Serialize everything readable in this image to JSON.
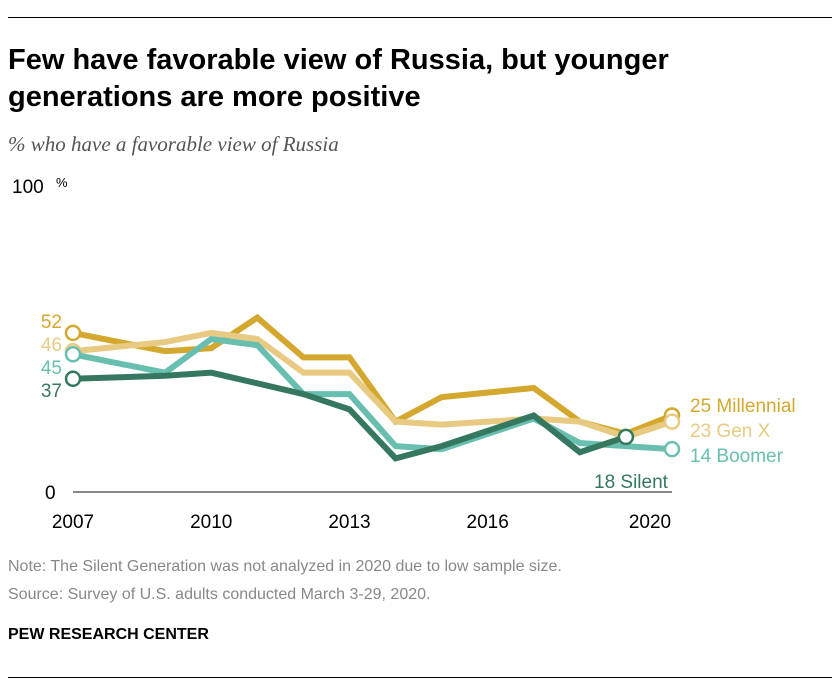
{
  "title": "Few have favorable view of Russia, but younger generations are more positive",
  "subtitle": "% who have a favorable view of Russia",
  "note": "Note: The Silent Generation was not analyzed in 2020 due to low sample size.",
  "source": "Source: Survey of U.S. adults conducted March 3-29, 2020.",
  "brand": "PEW RESEARCH CENTER",
  "chart_data": {
    "type": "line",
    "x": [
      2007,
      2008,
      2009,
      2010,
      2011,
      2012,
      2013,
      2014,
      2015,
      2016,
      2017,
      2018,
      2019,
      2020
    ],
    "xticks": [
      "2007",
      "2010",
      "2013",
      "2016",
      "2020"
    ],
    "yticks": [
      {
        "v": 0,
        "label": "0"
      },
      {
        "v": 100,
        "label": "100",
        "unit": "%"
      }
    ],
    "ylim": [
      0,
      100
    ],
    "grid": false,
    "series": [
      {
        "name": "Millennial",
        "color": "#D4A82E",
        "start_label": "52",
        "end_label": "25 Millennial",
        "values": [
          52,
          null,
          46,
          47,
          57,
          44,
          44,
          23,
          31,
          null,
          34,
          23,
          19,
          25
        ]
      },
      {
        "name": "Gen X",
        "color": "#E8CA82",
        "start_label": "46",
        "end_label": "23 Gen X",
        "values": [
          46,
          null,
          49,
          52,
          50,
          39,
          39,
          23,
          22,
          null,
          24,
          23,
          18,
          23
        ]
      },
      {
        "name": "Boomer",
        "color": "#68BFB0",
        "start_label": "45",
        "end_label": "14 Boomer",
        "values": [
          45,
          null,
          39,
          50,
          48,
          32,
          32,
          15,
          14,
          null,
          24,
          16,
          15,
          14
        ]
      },
      {
        "name": "Silent",
        "color": "#35775F",
        "start_label": "37",
        "end_label": "18 Silent",
        "values": [
          37,
          null,
          38,
          39,
          null,
          32,
          27,
          11,
          15,
          null,
          25,
          13,
          18,
          null
        ]
      }
    ]
  }
}
